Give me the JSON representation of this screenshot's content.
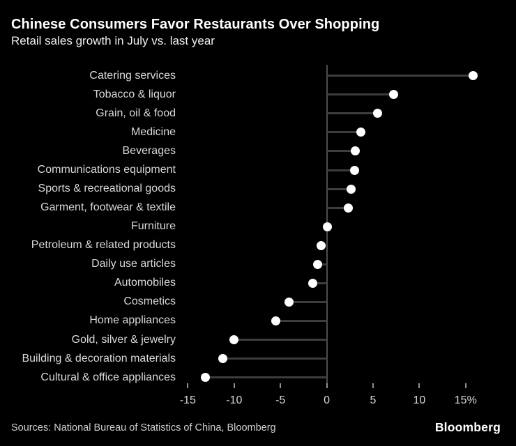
{
  "header": {
    "title": "Chinese Consumers Favor Restaurants Over Shopping",
    "subtitle": "Retail sales growth in July vs. last year"
  },
  "footer": {
    "sources": "Sources: National Bureau of Statistics of China, Bloomberg",
    "logo": "Bloomberg"
  },
  "chart_data": {
    "type": "bar",
    "variant": "lollipop",
    "orientation": "horizontal",
    "title": "Chinese Consumers Favor Restaurants Over Shopping",
    "subtitle": "Retail sales growth in July vs. last year",
    "unit": "%",
    "categories": [
      "Catering services",
      "Tobacco & liquor",
      "Grain, oil & food",
      "Medicine",
      "Beverages",
      "Communications equipment",
      "Sports & recreational goods",
      "Garment, footwear & textile",
      "Furniture",
      "Petroleum & related products",
      "Daily use articles",
      "Automobiles",
      "Cosmetics",
      "Home appliances",
      "Gold, silver & jewelry",
      "Building & decoration materials",
      "Cultural & office appliances"
    ],
    "values": [
      15.8,
      7.2,
      5.5,
      3.7,
      3.1,
      3.0,
      2.6,
      2.3,
      0.1,
      -0.6,
      -1.0,
      -1.5,
      -4.1,
      -5.5,
      -10.0,
      -11.2,
      -13.1
    ],
    "xlim": [
      -15,
      15
    ],
    "xticks": [
      -15,
      -10,
      -5,
      0,
      5,
      10,
      15
    ],
    "xtick_labels": [
      "-15",
      "-10",
      "-5",
      "0",
      "5",
      "10",
      "15%"
    ],
    "grid": false,
    "legend": false,
    "colors": {
      "background": "#000000",
      "dot": "#ffffff",
      "stem": "#3d3d3d",
      "axis": "#4d4d4d",
      "tick": "#919191",
      "label": "#d9d9d9"
    }
  }
}
